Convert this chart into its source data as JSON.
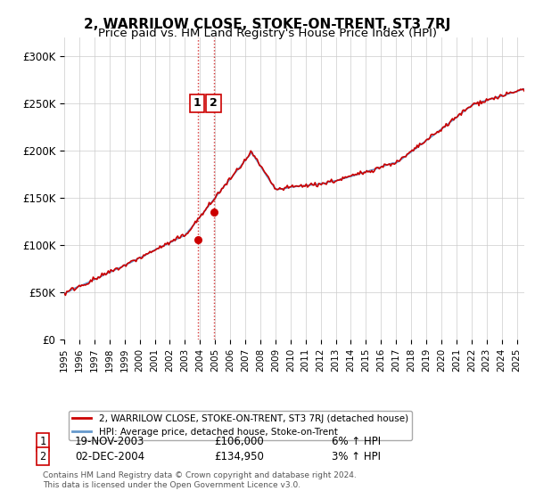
{
  "title": "2, WARRILOW CLOSE, STOKE-ON-TRENT, ST3 7RJ",
  "subtitle": "Price paid vs. HM Land Registry's House Price Index (HPI)",
  "title_fontsize": 11,
  "subtitle_fontsize": 9.5,
  "ylim": [
    0,
    320000
  ],
  "yticks": [
    0,
    50000,
    100000,
    150000,
    200000,
    250000,
    300000
  ],
  "ytick_labels": [
    "£0",
    "£50K",
    "£100K",
    "£150K",
    "£200K",
    "£250K",
    "£300K"
  ],
  "hpi_color": "#6699cc",
  "price_color": "#cc0000",
  "vline_color": "#cc0000",
  "vline_style": ":",
  "marker1_date_idx": 108,
  "marker2_date_idx": 120,
  "marker1_price": 106000,
  "marker2_price": 134950,
  "transaction1": {
    "date": "19-NOV-2003",
    "price": "£106,000",
    "hpi": "6% ↑ HPI"
  },
  "transaction2": {
    "date": "02-DEC-2004",
    "price": "£134,950",
    "hpi": "3% ↑ HPI"
  },
  "legend_label1": "2, WARRILOW CLOSE, STOKE-ON-TRENT, ST3 7RJ (detached house)",
  "legend_label2": "HPI: Average price, detached house, Stoke-on-Trent",
  "footer": "Contains HM Land Registry data © Crown copyright and database right 2024.\nThis data is licensed under the Open Government Licence v3.0.",
  "background_color": "#ffffff",
  "grid_color": "#cccccc"
}
